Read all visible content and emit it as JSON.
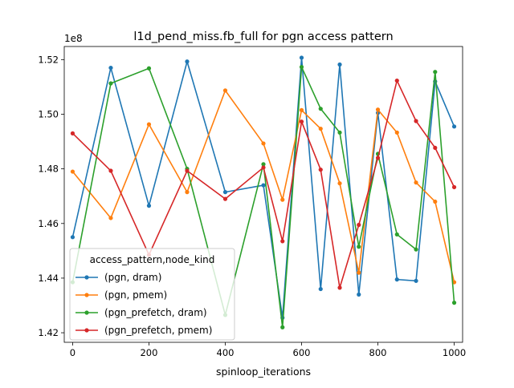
{
  "chart_data": {
    "type": "line",
    "title": "l1d_pend_miss.fb_full for pgn access pattern",
    "xlabel": "spinloop_iterations",
    "ylabel": "",
    "y_offset_label": "1e8",
    "y_scale": 100000000,
    "xlim": [
      -22,
      1022
    ],
    "ylim": [
      1.4165,
      1.5248
    ],
    "x_ticks": [
      0,
      200,
      400,
      600,
      800,
      1000
    ],
    "y_ticks": [
      1.42,
      1.44,
      1.46,
      1.48,
      1.5,
      1.52
    ],
    "y_tick_labels": [
      "1.42",
      "1.44",
      "1.46",
      "1.48",
      "1.50",
      "1.52"
    ],
    "grid": false,
    "legend": {
      "title": "access_pattern,node_kind",
      "placement": "lower-left"
    },
    "x": [
      0,
      100,
      200,
      300,
      400,
      500,
      550,
      600,
      650,
      700,
      750,
      800,
      850,
      900,
      950,
      1000
    ],
    "series": [
      {
        "name": "(pgn, dram)",
        "color": "#1f77b4",
        "values": [
          1.455,
          1.517,
          1.4665,
          1.5193,
          1.4715,
          1.474,
          1.4255,
          1.5207,
          1.436,
          1.5182,
          1.434,
          1.5005,
          1.4395,
          1.439,
          1.512,
          1.4955
        ]
      },
      {
        "name": "(pgn, pmem)",
        "color": "#ff7f0e",
        "values": [
          1.479,
          1.462,
          1.4963,
          1.4715,
          1.5087,
          1.4893,
          1.4687,
          1.5015,
          1.4947,
          1.4747,
          1.442,
          1.5017,
          1.4933,
          1.475,
          1.468,
          1.4385
        ]
      },
      {
        "name": "(pgn_prefetch, dram)",
        "color": "#2ca02c",
        "values": [
          1.4385,
          1.5113,
          1.5168,
          1.48,
          1.4265,
          1.4817,
          1.422,
          1.5173,
          1.502,
          1.4933,
          1.4515,
          1.4855,
          1.456,
          1.4505,
          1.5155,
          1.431
        ]
      },
      {
        "name": "(pgn_prefetch, pmem)",
        "color": "#d62728",
        "values": [
          1.493,
          1.4793,
          1.4485,
          1.4793,
          1.469,
          1.4805,
          1.4535,
          1.4973,
          1.4797,
          1.4365,
          1.4595,
          1.484,
          1.5123,
          1.4975,
          1.4877,
          1.4733
        ]
      }
    ]
  }
}
